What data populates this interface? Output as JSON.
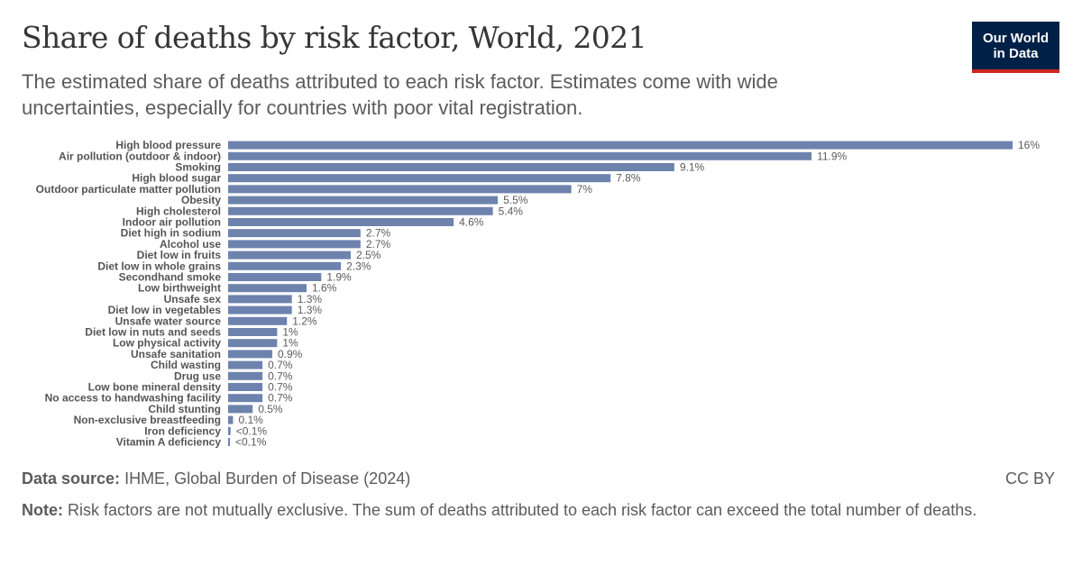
{
  "header": {
    "title": "Share of deaths by risk factor, World, 2021",
    "subtitle": "The estimated share of deaths attributed to each risk factor. Estimates come with wide uncertainties, especially for countries with poor vital registration."
  },
  "logo": {
    "line1": "Our World",
    "line2": "in Data"
  },
  "footer": {
    "source_label": "Data source:",
    "source_text": "IHME, Global Burden of Disease (2024)",
    "license": "CC BY",
    "note_label": "Note:",
    "note_text": "Risk factors are not mutually exclusive. The sum of deaths attributed to each risk factor can exceed the total number of deaths."
  },
  "colors": {
    "bar": "#6d83ad",
    "logo_bg": "#002147",
    "logo_accent": "#ce261e"
  },
  "chart_data": {
    "type": "bar",
    "orientation": "horizontal",
    "unit": "%",
    "xlim": [
      0,
      16
    ],
    "grid": false,
    "categories": [
      "High blood pressure",
      "Air pollution (outdoor & indoor)",
      "Smoking",
      "High blood sugar",
      "Outdoor particulate matter pollution",
      "Obesity",
      "High cholesterol",
      "Indoor air pollution",
      "Diet high in sodium",
      "Alcohol use",
      "Diet low in fruits",
      "Diet low in whole grains",
      "Secondhand smoke",
      "Low birthweight",
      "Unsafe sex",
      "Diet low in vegetables",
      "Unsafe water source",
      "Diet low in nuts and seeds",
      "Low physical activity",
      "Unsafe sanitation",
      "Child wasting",
      "Drug use",
      "Low bone mineral density",
      "No access to handwashing facility",
      "Child stunting",
      "Non-exclusive breastfeeding",
      "Iron deficiency",
      "Vitamin A deficiency"
    ],
    "values": [
      16,
      11.9,
      9.1,
      7.8,
      7,
      5.5,
      5.4,
      4.6,
      2.7,
      2.7,
      2.5,
      2.3,
      1.9,
      1.6,
      1.3,
      1.3,
      1.2,
      1,
      1,
      0.9,
      0.7,
      0.7,
      0.7,
      0.7,
      0.5,
      0.1,
      0.05,
      0.03
    ],
    "value_labels": [
      "16%",
      "11.9%",
      "9.1%",
      "7.8%",
      "7%",
      "5.5%",
      "5.4%",
      "4.6%",
      "2.7%",
      "2.7%",
      "2.5%",
      "2.3%",
      "1.9%",
      "1.6%",
      "1.3%",
      "1.3%",
      "1.2%",
      "1%",
      "1%",
      "0.9%",
      "0.7%",
      "0.7%",
      "0.7%",
      "0.7%",
      "0.5%",
      "0.1%",
      "<0.1%",
      "<0.1%"
    ]
  }
}
